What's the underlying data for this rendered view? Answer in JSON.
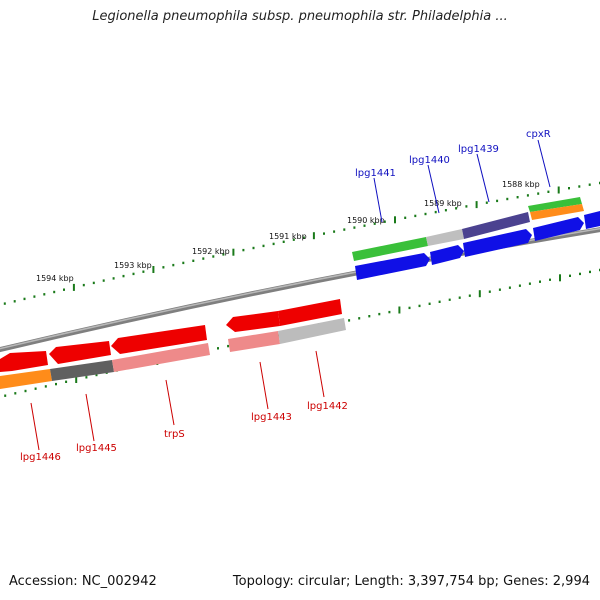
{
  "title": "Legionella pneumophila subsp. pneumophila str. Philadelphia ...",
  "footer": {
    "accession": "Accession: NC_002942",
    "summary": "Topology: circular; Length: 3,397,754 bp; Genes: 2,994"
  },
  "colors": {
    "backbone": "#888888",
    "tick": "#1a7a1a",
    "forward_label": "#1010c0",
    "reverse_label": "#cc0000"
  },
  "scale_labels": [
    "1588 kbp",
    "1589 kbp",
    "1590 kbp",
    "1591 kbp",
    "1592 kbp",
    "1593 kbp",
    "1594 kbp"
  ],
  "forward_genes": [
    "lpg1441",
    "lpg1440",
    "lpg1439",
    "cpxR"
  ],
  "reverse_genes": [
    "lpg1446",
    "lpg1445",
    "trpS",
    "lpg1443",
    "lpg1442"
  ]
}
